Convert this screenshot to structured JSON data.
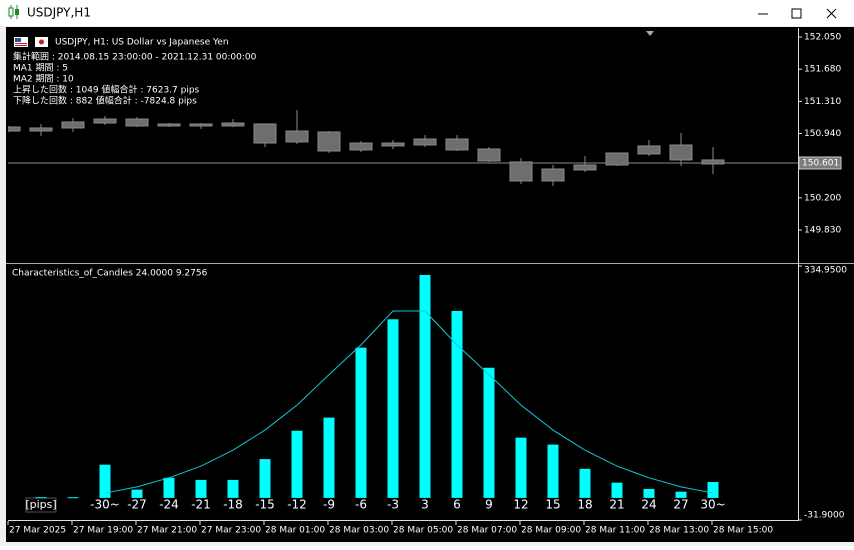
{
  "window": {
    "title": "USDJPY,H1"
  },
  "main_chart": {
    "info": [
      "USDJPY, H1:  US Dollar vs Japanese Yen",
      "集計範囲 : 2014.08.15 23:00:00 - 2021.12.31 00:00:00",
      "MA1 期間 : 5",
      "MA2 期間 : 10",
      "上昇した回数 : 1049  値幅合計 : 7623.7 pips",
      "下降した回数 : 882  値幅合計 : -7824.8 pips"
    ],
    "ylim": [
      149.462,
      152.154
    ],
    "yticks": [
      {
        "value": 152.05,
        "label": "152.050"
      },
      {
        "value": 151.68,
        "label": "151.680"
      },
      {
        "value": 151.31,
        "label": "151.310"
      },
      {
        "value": 150.94,
        "label": "150.940"
      },
      {
        "value": 150.2,
        "label": "150.200"
      },
      {
        "value": 149.83,
        "label": "149.830"
      }
    ],
    "current_price": 150.601,
    "candles": {
      "high": [
        151.027,
        151.05,
        151.119,
        151.142,
        151.13,
        151.061,
        151.061,
        151.107,
        151.05,
        151.211,
        150.969,
        150.854,
        150.866,
        150.923,
        150.923,
        150.785,
        150.659,
        150.578,
        150.682,
        150.716,
        150.866,
        150.946,
        150.785
      ],
      "open": [
        151.015,
        151.004,
        151.073,
        151.107,
        151.107,
        151.05,
        151.05,
        151.061,
        151.05,
        150.969,
        150.958,
        150.831,
        150.831,
        150.877,
        150.877,
        150.762,
        150.613,
        150.532,
        150.578,
        150.716,
        150.797,
        150.808,
        150.636
      ],
      "close": [
        150.969,
        150.969,
        151.004,
        151.061,
        151.027,
        151.027,
        151.027,
        151.027,
        150.831,
        150.843,
        150.739,
        150.751,
        150.797,
        150.808,
        150.751,
        150.624,
        150.394,
        150.394,
        150.521,
        150.578,
        150.705,
        150.636,
        150.59
      ],
      "low": [
        150.958,
        150.912,
        150.958,
        151.038,
        151.015,
        151.015,
        150.992,
        151.015,
        150.785,
        150.82,
        150.716,
        150.728,
        150.762,
        150.785,
        150.739,
        150.613,
        150.36,
        150.337,
        150.498,
        150.567,
        150.682,
        150.567,
        150.475
      ]
    }
  },
  "chart_data": {
    "type": "bar",
    "title": "Characteristics_of_Candles 24.0000 9.2756",
    "unit_label": "[pips]",
    "categories": [
      null,
      null,
      "-30~",
      "-27",
      "-24",
      "-21",
      "-18",
      "-15",
      "-12",
      "-9",
      "-6",
      "-3",
      "3",
      "6",
      "9",
      "12",
      "15",
      "18",
      "21",
      "24",
      "27",
      "30~"
    ],
    "series": [
      {
        "name": "bars",
        "color": "#00ffff",
        "values": [
          1,
          1,
          48,
          12,
          29,
          26,
          26,
          56,
          97,
          116,
          217,
          258,
          322,
          270,
          188,
          87,
          77,
          42,
          22,
          13,
          9,
          23
        ]
      },
      {
        "name": "curve",
        "color": "#10c8d8",
        "values": [
          null,
          null,
          7,
          16,
          29,
          46,
          69,
          98,
          134,
          178,
          221,
          270,
          270,
          221,
          178,
          134,
          98,
          69,
          46,
          29,
          16,
          7
        ]
      }
    ],
    "ylim": [
      -31.9,
      334.95
    ],
    "yticks": [
      {
        "value": 334.95,
        "label": "334.9500"
      },
      {
        "value": -31.9,
        "label": "-31.9000"
      }
    ]
  },
  "time_axis": [
    "27 Mar 2025",
    "27 Mar 19:00",
    "27 Mar 21:00",
    "27 Mar 23:00",
    "28 Mar 01:00",
    "28 Mar 03:00",
    "28 Mar 05:00",
    "28 Mar 07:00",
    "28 Mar 09:00",
    "28 Mar 11:00",
    "28 Mar 13:00",
    "28 Mar 15:00"
  ]
}
